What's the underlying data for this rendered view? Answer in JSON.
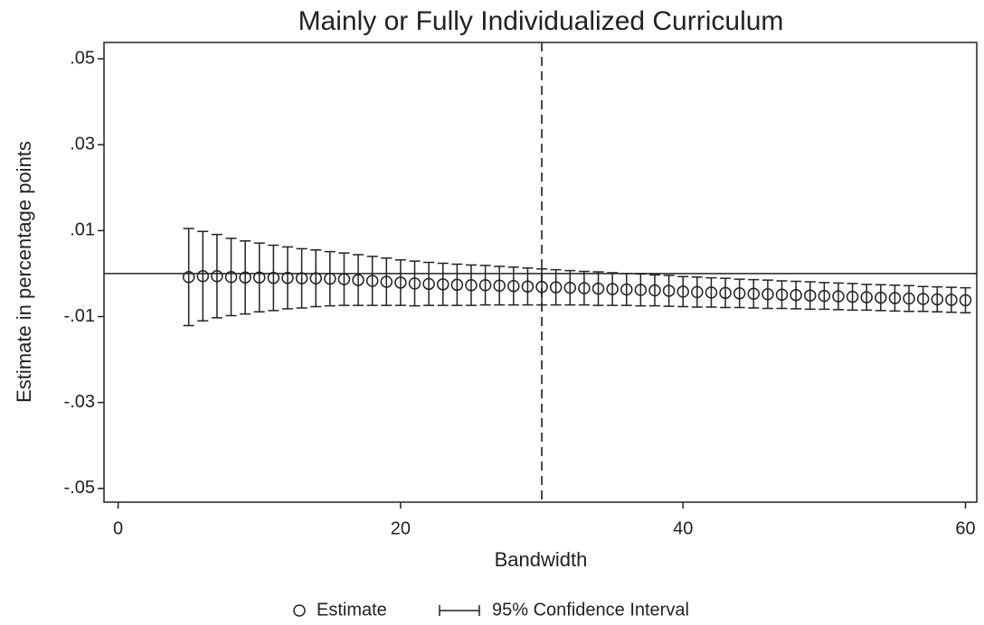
{
  "chart_data": {
    "type": "errorbar",
    "title": "Mainly or Fully Individualized Curriculum",
    "xlabel": "Bandwidth",
    "ylabel": "Estimate in percentage points",
    "x": [
      5,
      6,
      7,
      8,
      9,
      10,
      11,
      12,
      13,
      14,
      15,
      16,
      17,
      18,
      19,
      20,
      21,
      22,
      23,
      24,
      25,
      26,
      27,
      28,
      29,
      30,
      31,
      32,
      33,
      34,
      35,
      36,
      37,
      38,
      39,
      40,
      41,
      42,
      43,
      44,
      45,
      46,
      47,
      48,
      49,
      50,
      51,
      52,
      53,
      54,
      55,
      56,
      57,
      58,
      59,
      60
    ],
    "series": [
      {
        "name": "Estimate",
        "error_name": "95% Confidence Interval",
        "color": "#222222",
        "values": [
          -0.0008,
          -0.0006,
          -0.0006,
          -0.0008,
          -0.0009,
          -0.0009,
          -0.001,
          -0.001,
          -0.0011,
          -0.0011,
          -0.0012,
          -0.0013,
          -0.0015,
          -0.0017,
          -0.0019,
          -0.0021,
          -0.0023,
          -0.0024,
          -0.0025,
          -0.0026,
          -0.0027,
          -0.0027,
          -0.0028,
          -0.0029,
          -0.003,
          -0.0031,
          -0.0032,
          -0.0033,
          -0.0034,
          -0.0035,
          -0.0036,
          -0.0037,
          -0.0038,
          -0.0039,
          -0.004,
          -0.0042,
          -0.0043,
          -0.0044,
          -0.0045,
          -0.0046,
          -0.0047,
          -0.0048,
          -0.0049,
          -0.005,
          -0.0051,
          -0.0052,
          -0.0053,
          -0.0054,
          -0.0055,
          -0.0056,
          -0.0057,
          -0.0058,
          -0.0059,
          -0.006,
          -0.0061,
          -0.0062
        ],
        "errors": [
          0.0113,
          0.0104,
          0.0097,
          0.009,
          0.0085,
          0.008,
          0.0076,
          0.0072,
          0.0069,
          0.0066,
          0.0063,
          0.0061,
          0.0059,
          0.0057,
          0.0055,
          0.0053,
          0.0052,
          0.005,
          0.0049,
          0.0048,
          0.0047,
          0.0046,
          0.0045,
          0.0044,
          0.0043,
          0.0042,
          0.0041,
          0.004,
          0.0039,
          0.0039,
          0.0038,
          0.0037,
          0.0037,
          0.0036,
          0.0036,
          0.0035,
          0.0035,
          0.0034,
          0.0034,
          0.0033,
          0.0033,
          0.0033,
          0.0032,
          0.0032,
          0.0032,
          0.0031,
          0.0031,
          0.0031,
          0.003,
          0.003,
          0.003,
          0.003,
          0.0029,
          0.0029,
          0.0029,
          0.0029
        ]
      }
    ],
    "hline": 0,
    "vline": 30,
    "xlim": [
      -1,
      60.8
    ],
    "ylim": [
      -0.0532,
      0.0538
    ],
    "xticks": [
      0,
      20,
      40,
      60
    ],
    "yticks": [
      {
        "value": -0.05,
        "label": "-.05"
      },
      {
        "value": -0.03,
        "label": "-.03"
      },
      {
        "value": -0.01,
        "label": "-.01"
      },
      {
        "value": 0.01,
        "label": ".01"
      },
      {
        "value": 0.03,
        "label": ".03"
      },
      {
        "value": 0.05,
        "label": ".05"
      }
    ]
  }
}
